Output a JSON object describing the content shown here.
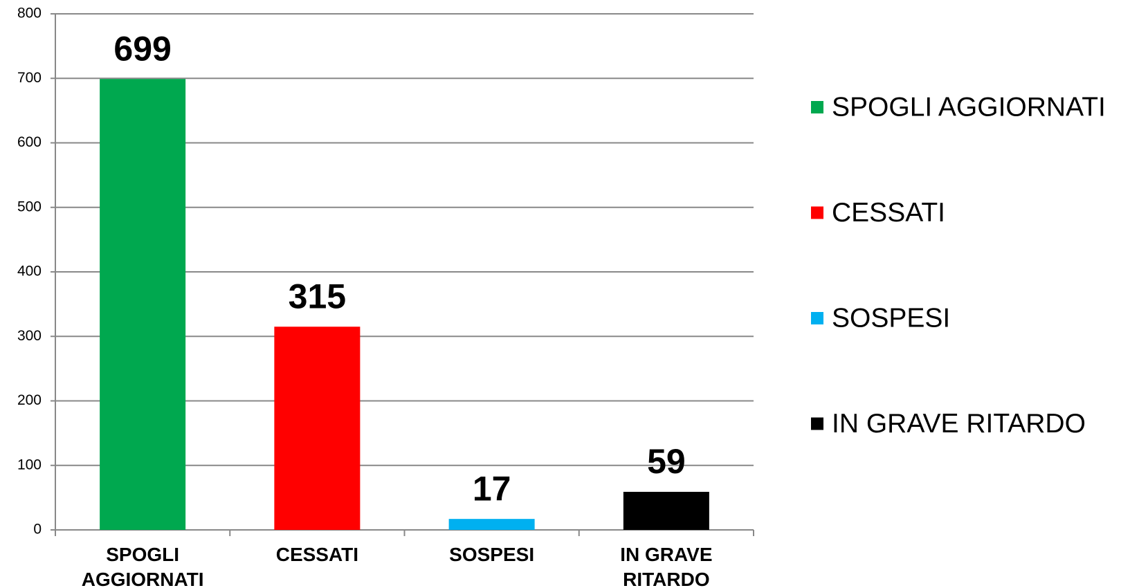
{
  "chart_data": {
    "type": "bar",
    "categories": [
      "SPOGLI AGGIORNATI",
      "CESSATI",
      "SOSPESI",
      "IN GRAVE RITARDO"
    ],
    "values": [
      699,
      315,
      17,
      59
    ],
    "colors": [
      "#00a84f",
      "#ff0000",
      "#00b0f0",
      "#000000"
    ],
    "ylim": [
      0,
      800
    ],
    "yticks": [
      0,
      100,
      200,
      300,
      400,
      500,
      600,
      700,
      800
    ],
    "grid": true,
    "data_labels": true,
    "legend": "right"
  }
}
